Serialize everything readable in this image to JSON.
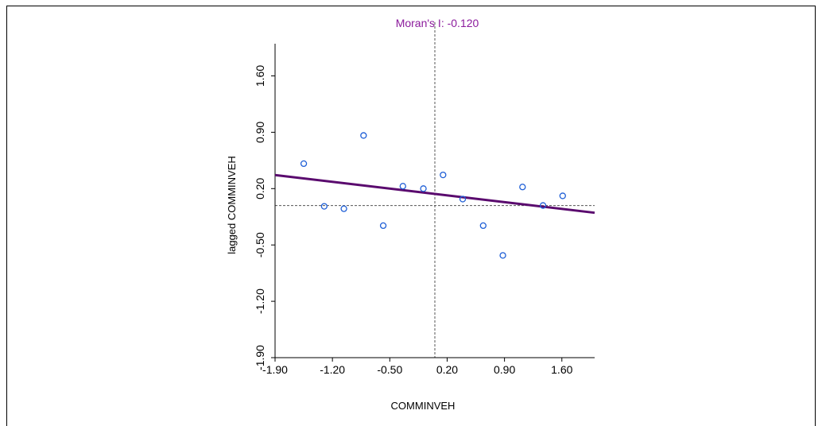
{
  "chart_data": {
    "type": "scatter",
    "title": "Moran's I: -0.120",
    "xlabel": "COMMINVEH",
    "ylabel": "lagged COMMINVEH",
    "xlim": [
      -1.9,
      2.0
    ],
    "ylim": [
      -1.9,
      2.0
    ],
    "xticks": [
      "-1.90",
      "-1.20",
      "-0.50",
      "0.20",
      "0.90",
      "1.60"
    ],
    "yticks": [
      "-1.90",
      "-1.20",
      "-0.50",
      "0.20",
      "0.90",
      "1.60"
    ],
    "x_tick_values": [
      -1.9,
      -1.2,
      -0.5,
      0.2,
      0.9,
      1.6
    ],
    "y_tick_values": [
      -1.9,
      -1.2,
      -0.5,
      0.2,
      0.9,
      1.6
    ],
    "points": [
      {
        "x": -1.55,
        "y": 0.51
      },
      {
        "x": -1.3,
        "y": -0.02
      },
      {
        "x": -1.06,
        "y": -0.05
      },
      {
        "x": -0.82,
        "y": 0.86
      },
      {
        "x": -0.58,
        "y": -0.26
      },
      {
        "x": -0.34,
        "y": 0.23
      },
      {
        "x": -0.09,
        "y": 0.2
      },
      {
        "x": 0.15,
        "y": 0.37
      },
      {
        "x": 0.39,
        "y": 0.07
      },
      {
        "x": 0.64,
        "y": -0.26
      },
      {
        "x": 0.88,
        "y": -0.63
      },
      {
        "x": 1.12,
        "y": 0.22
      },
      {
        "x": 1.37,
        "y": -0.01
      },
      {
        "x": 1.61,
        "y": 0.11
      }
    ],
    "regression_line": {
      "slope": -0.12,
      "intercept": 0.14
    },
    "mean_lines": {
      "x": 0.05,
      "y": -0.01
    },
    "colors": {
      "title": "#8b1a9c",
      "points": "#1f5fd6",
      "regression": "#5a0a6e",
      "reference": "#555555"
    }
  }
}
